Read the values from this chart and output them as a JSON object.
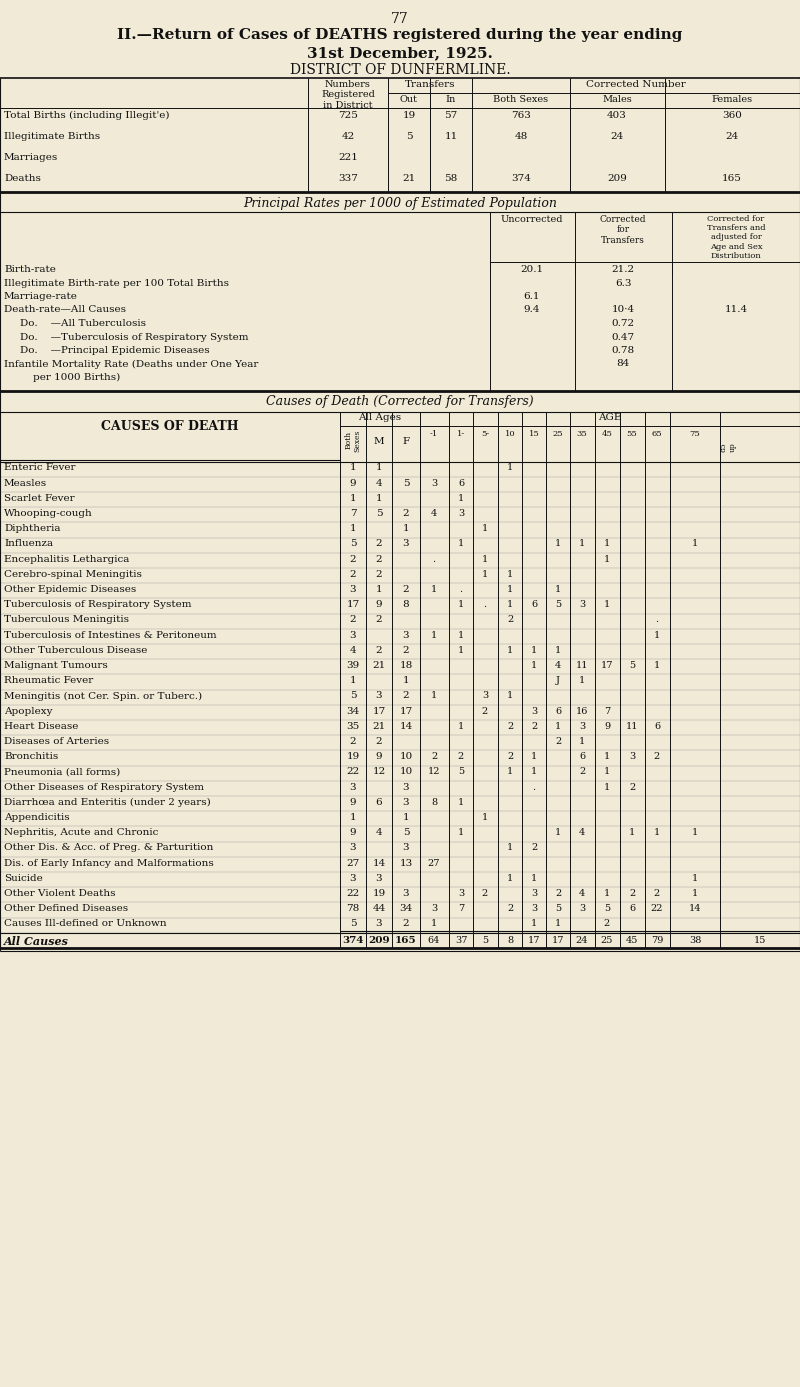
{
  "page_number": "77",
  "bg_color": "#f0ead6",
  "text_color": "#1a1a1a",
  "section1_rows": [
    [
      "Total Births (including Illegit'e)",
      "725",
      "19",
      "57",
      "763",
      "403",
      "360"
    ],
    [
      "Illegitimate Births",
      "42",
      "5",
      "11",
      "48",
      "24",
      "24"
    ],
    [
      "Marriages",
      "221",
      "",
      "",
      "",
      "",
      ""
    ],
    [
      "Deaths",
      "337",
      "21",
      "58",
      "374",
      "209",
      "165"
    ]
  ],
  "section2_rows": [
    [
      "Birth-rate",
      "20.1",
      "21.2",
      ""
    ],
    [
      "Illegitimate Birth-rate per 100 Total Births",
      "",
      "6.3",
      ""
    ],
    [
      "Marriage-rate",
      "6.1",
      "",
      ""
    ],
    [
      "Death-rate—All Causes",
      "9.4",
      "10·4",
      "11.4"
    ],
    [
      "Do.    —All Tuberculosis",
      "",
      "0.72",
      ""
    ],
    [
      "Do.    —Tuberculosis of Respiratory System",
      "",
      "0.47",
      ""
    ],
    [
      "Do.    —Principal Epidemic Diseases",
      "",
      "0.78",
      ""
    ],
    [
      "Infantile Mortality Rate (Deaths under One Year",
      "",
      "84",
      ""
    ],
    [
      "    per 1000 Births)",
      "",
      "",
      ""
    ]
  ],
  "section3_rows": [
    [
      "Enteric Fever",
      "1",
      "1",
      "",
      "",
      "",
      "",
      "1",
      "",
      "",
      "",
      "",
      "",
      "",
      ""
    ],
    [
      "Measles",
      "9",
      "4",
      "5",
      "3",
      "6",
      "",
      "",
      "",
      "",
      "",
      "",
      "",
      "",
      ""
    ],
    [
      "Scarlet Fever",
      "1",
      "1",
      "",
      "",
      "1",
      "",
      "",
      "",
      "",
      "",
      "",
      "",
      "",
      ""
    ],
    [
      "Whooping-cough",
      "7",
      "5",
      "2",
      "4",
      "3",
      "",
      "",
      "",
      "",
      "",
      "",
      "",
      "",
      ""
    ],
    [
      "Diphtheria",
      "1",
      "",
      "1",
      "",
      "",
      "1",
      "",
      "",
      "",
      "",
      "",
      "",
      "",
      ""
    ],
    [
      "Influenza",
      "5",
      "2",
      "3",
      "",
      "1",
      "",
      "",
      "",
      "1",
      "1",
      "1",
      "",
      "",
      "1"
    ],
    [
      "Encephalitis Lethargica",
      "2",
      "2",
      "",
      ".",
      "",
      "1",
      "",
      "",
      "",
      "",
      "1",
      "",
      "",
      ""
    ],
    [
      "Cerebro-spinal Meningitis",
      "2",
      "2",
      "",
      "",
      "",
      "1",
      "1",
      "",
      "",
      "",
      "",
      "",
      "",
      ""
    ],
    [
      "Other Epidemic Diseases",
      "3",
      "1",
      "2",
      "1",
      ".",
      "",
      "1",
      "",
      "1",
      "",
      "",
      "",
      "",
      ""
    ],
    [
      "Tuberculosis of Respiratory System",
      "17",
      "9",
      "8",
      "",
      "1",
      ".",
      "1",
      "6",
      "5",
      "3",
      "1",
      "",
      "",
      ""
    ],
    [
      "Tuberculous Meningitis",
      "2",
      "2",
      "",
      "",
      "",
      "",
      "2",
      "",
      "",
      "",
      "",
      "",
      ".",
      ""
    ],
    [
      "Tuberculosis of Intestines & Peritoneum",
      "3",
      "",
      "3",
      "1",
      "1",
      "",
      "",
      "",
      "",
      "",
      "",
      "",
      "1",
      ""
    ],
    [
      "Other Tuberculous Disease",
      "4",
      "2",
      "2",
      "",
      "1",
      "",
      "1",
      "1",
      "1",
      "",
      "",
      "",
      "",
      ""
    ],
    [
      "Malignant Tumours",
      "39",
      "21",
      "18",
      "",
      "",
      "",
      "",
      "1",
      "4",
      "11",
      "17",
      "5",
      "1",
      ""
    ],
    [
      "Rheumatic Fever",
      "1",
      "",
      "1",
      "",
      "",
      "",
      "",
      "",
      "J",
      "1",
      "",
      "",
      "",
      ""
    ],
    [
      "Meningitis (not Cer. Spin. or Tuberc.)",
      "5",
      "3",
      "2",
      "1",
      "",
      "3",
      "1",
      "",
      "",
      "",
      "",
      "",
      "",
      ""
    ],
    [
      "Apoplexy",
      "34",
      "17",
      "17",
      "",
      "",
      "2",
      "",
      "3",
      "6",
      "16",
      "7",
      "",
      "",
      ""
    ],
    [
      "Heart Disease",
      "35",
      "21",
      "14",
      "",
      "1",
      "",
      "2",
      "2",
      "1",
      "3",
      "9",
      "11",
      "6",
      ""
    ],
    [
      "Diseases of Arteries",
      "2",
      "2",
      "",
      "",
      "",
      "",
      "",
      "",
      "2",
      "1",
      "",
      "",
      "",
      ""
    ],
    [
      "Bronchitis",
      "19",
      "9",
      "10",
      "2",
      "2",
      "",
      "2",
      "1",
      "",
      "6",
      "1",
      "3",
      "2",
      ""
    ],
    [
      "Pneumonia (all forms)",
      "22",
      "12",
      "10",
      "12",
      "5",
      "",
      "1",
      "1",
      "",
      "2",
      "1",
      "",
      "",
      ""
    ],
    [
      "Other Diseases of Respiratory System",
      "3",
      "",
      "3",
      "",
      "",
      "",
      "",
      ".",
      "",
      "",
      "1",
      "2",
      "",
      ""
    ],
    [
      "Diarrhœa and Enteritis (under 2 years)",
      "9",
      "6",
      "3",
      "8",
      "1",
      "",
      "",
      "",
      "",
      "",
      "",
      "",
      "",
      ""
    ],
    [
      "Appendicitis",
      "1",
      "",
      "1",
      "",
      "",
      "1",
      "",
      "",
      "",
      "",
      "",
      "",
      "",
      ""
    ],
    [
      "Nephritis, Acute and Chronic",
      "9",
      "4",
      "5",
      "",
      "1",
      "",
      "",
      "",
      "1",
      "4",
      "",
      "1",
      "1",
      "1"
    ],
    [
      "Other Dis. & Acc. of Preg. & Parturition",
      "3",
      "",
      "3",
      "",
      "",
      "",
      "1",
      "2",
      "",
      "",
      "",
      "",
      "",
      ""
    ],
    [
      "Dis. of Early Infancy and Malformations",
      "27",
      "14",
      "13",
      "27",
      "",
      "",
      "",
      "",
      "",
      "",
      "",
      "",
      "",
      ""
    ],
    [
      "Suicide",
      "3",
      "3",
      "",
      "",
      "",
      "",
      "1",
      "1",
      "",
      "",
      "",
      "",
      "",
      "1"
    ],
    [
      "Other Violent Deaths",
      "22",
      "19",
      "3",
      "",
      "3",
      "2",
      "",
      "3",
      "2",
      "4",
      "1",
      "2",
      "2",
      "1"
    ],
    [
      "Other Defined Diseases",
      "78",
      "44",
      "34",
      "3",
      "7",
      "",
      "2",
      "3",
      "5",
      "3",
      "5",
      "6",
      "22",
      "14"
    ],
    [
      "Causes Ill-defined or Unknown",
      "5",
      "3",
      "2",
      "1",
      "",
      "",
      "",
      "1",
      "1",
      "",
      "2",
      "",
      "",
      ""
    ]
  ],
  "section3_totals": [
    "374",
    "209",
    "165",
    "64",
    "37",
    "5",
    "8",
    "17",
    "17",
    "24",
    "25",
    "45",
    "79",
    "38",
    "15"
  ]
}
